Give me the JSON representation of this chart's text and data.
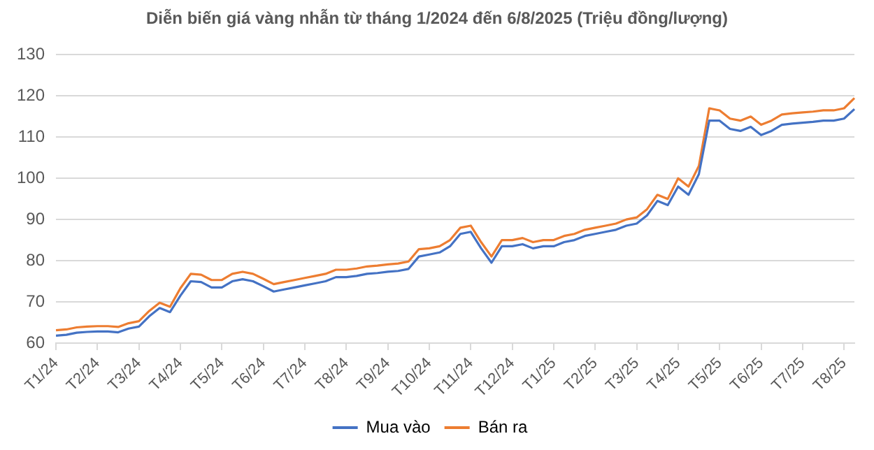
{
  "chart_data": {
    "type": "line",
    "title": "Diễn biến giá vàng nhẫn từ tháng 1/2024 đến 6/8/2025 (Triệu đồng/lượng)",
    "categories": [
      "T1/24",
      null,
      null,
      null,
      "T2/24",
      null,
      null,
      null,
      "T3/24",
      null,
      null,
      null,
      "T4/24",
      null,
      null,
      null,
      "T5/24",
      null,
      null,
      null,
      "T6/24",
      null,
      null,
      null,
      "T7/24",
      null,
      null,
      null,
      "T8/24",
      null,
      null,
      null,
      "T9/24",
      null,
      null,
      null,
      "T10/24",
      null,
      null,
      null,
      "T11/24",
      null,
      null,
      null,
      "T12/24",
      null,
      null,
      null,
      "T1/25",
      null,
      null,
      null,
      "T2/25",
      null,
      null,
      null,
      "T3/25",
      null,
      null,
      null,
      "T4/25",
      null,
      null,
      null,
      "T5/25",
      null,
      null,
      null,
      "T6/25",
      null,
      null,
      null,
      "T7/25",
      null,
      null,
      null,
      "T8/25",
      null
    ],
    "series": [
      {
        "name": "Mua vào",
        "color": "#4472c4",
        "values": [
          61.8,
          62.0,
          62.5,
          62.7,
          62.8,
          62.8,
          62.6,
          63.5,
          64.0,
          66.5,
          68.5,
          67.5,
          71.5,
          75.0,
          74.8,
          73.5,
          73.5,
          75.0,
          75.5,
          75.0,
          73.8,
          72.5,
          73.0,
          73.5,
          74.0,
          74.5,
          75.0,
          76.0,
          76.0,
          76.3,
          76.8,
          77.0,
          77.3,
          77.5,
          78.0,
          81.0,
          81.5,
          82.0,
          83.5,
          86.5,
          87.0,
          83.0,
          79.5,
          83.5,
          83.5,
          84.0,
          83.0,
          83.5,
          83.5,
          84.5,
          85.0,
          86.0,
          86.5,
          87.0,
          87.5,
          88.5,
          89.0,
          91.0,
          94.5,
          93.5,
          98.0,
          96.0,
          101.0,
          114.0,
          114.0,
          112.0,
          111.5,
          112.5,
          110.5,
          111.5,
          113.0,
          113.3,
          113.5,
          113.7,
          114.0,
          114.0,
          114.5,
          116.8
        ]
      },
      {
        "name": "Bán ra",
        "color": "#ed7d31",
        "values": [
          63.1,
          63.3,
          63.8,
          64.0,
          64.1,
          64.1,
          63.9,
          64.8,
          65.3,
          67.8,
          69.8,
          68.8,
          73.3,
          76.8,
          76.6,
          75.3,
          75.3,
          76.8,
          77.3,
          76.8,
          75.6,
          74.3,
          74.8,
          75.3,
          75.8,
          76.3,
          76.8,
          77.8,
          77.8,
          78.1,
          78.6,
          78.8,
          79.1,
          79.3,
          79.8,
          82.8,
          83.0,
          83.5,
          85.0,
          88.0,
          88.5,
          84.5,
          81.0,
          85.0,
          85.0,
          85.5,
          84.5,
          85.0,
          85.0,
          86.0,
          86.5,
          87.5,
          88.0,
          88.5,
          89.0,
          90.0,
          90.5,
          92.5,
          96.0,
          95.0,
          100.0,
          98.0,
          103.0,
          117.0,
          116.5,
          114.5,
          114.0,
          115.0,
          113.0,
          114.0,
          115.5,
          115.8,
          116.0,
          116.2,
          116.5,
          116.5,
          117.0,
          119.5
        ]
      }
    ],
    "ylim": [
      60,
      130
    ],
    "yticks": [
      60,
      70,
      80,
      90,
      100,
      110,
      120,
      130
    ],
    "grid": "y",
    "legend": "bottom",
    "marker": "none",
    "line_style": "solid"
  }
}
